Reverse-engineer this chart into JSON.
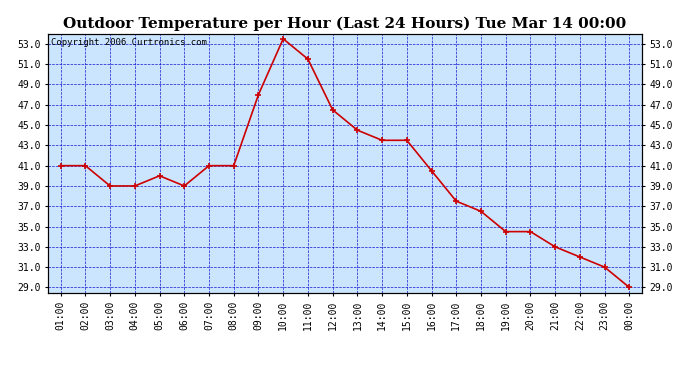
{
  "title": "Outdoor Temperature per Hour (Last 24 Hours) Tue Mar 14 00:00",
  "copyright": "Copyright 2006 Curtronics.com",
  "x_labels": [
    "01:00",
    "02:00",
    "03:00",
    "04:00",
    "05:00",
    "06:00",
    "07:00",
    "08:00",
    "09:00",
    "10:00",
    "11:00",
    "12:00",
    "13:00",
    "14:00",
    "15:00",
    "16:00",
    "17:00",
    "18:00",
    "19:00",
    "20:00",
    "21:00",
    "22:00",
    "23:00",
    "00:00"
  ],
  "y_values": [
    41.0,
    41.0,
    39.0,
    39.0,
    40.0,
    39.0,
    41.0,
    41.0,
    48.0,
    53.5,
    51.5,
    46.5,
    44.5,
    43.5,
    43.5,
    40.5,
    37.5,
    36.5,
    34.5,
    34.5,
    33.0,
    32.0,
    31.0,
    29.0
  ],
  "line_color": "#cc0000",
  "marker_color": "#cc0000",
  "bg_color": "#ffffff",
  "plot_bg_color": "#cce5ff",
  "grid_color": "#0000cc",
  "title_color": "#000000",
  "border_color": "#000000",
  "yticks": [
    29.0,
    31.0,
    33.0,
    35.0,
    37.0,
    39.0,
    41.0,
    43.0,
    45.0,
    47.0,
    49.0,
    51.0,
    53.0
  ],
  "title_fontsize": 11,
  "copyright_fontsize": 6.5,
  "tick_fontsize": 7
}
